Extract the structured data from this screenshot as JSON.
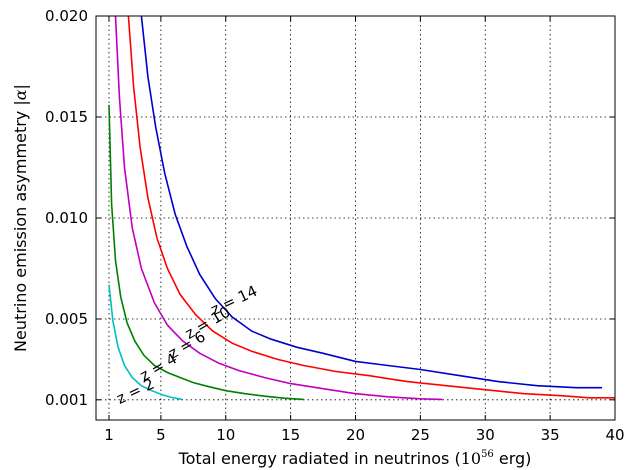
{
  "chart_data": {
    "type": "line",
    "xlabel": "Total energy radiated in neutrinos (",
    "xlabel_math": "10",
    "xlabel_exp": "56",
    "xlabel_tail": " erg)",
    "ylabel": "Neutrino emission asymmetry |",
    "ylabel_math": "α",
    "ylabel_tail": "|",
    "xlim": [
      0,
      40
    ],
    "ylim": [
      0,
      0.02
    ],
    "x_ticks": [
      1,
      5,
      10,
      15,
      20,
      25,
      30,
      35,
      40
    ],
    "x_tick_labels": [
      "1",
      "5",
      "10",
      "15",
      "20",
      "25",
      "30",
      "35",
      "40"
    ],
    "y_ticks": [
      0.001,
      0.005,
      0.01,
      0.015,
      0.02
    ],
    "y_tick_labels": [
      "0.001",
      "0.005",
      "0.010",
      "0.015",
      "0.020"
    ],
    "grid": true,
    "series": [
      {
        "name": "z = 2",
        "color": "#00bfbf",
        "x": [
          1.0,
          1.3,
          1.7,
          2.2,
          2.8,
          3.5,
          4.3,
          5.1,
          5.8,
          6.6
        ],
        "y": [
          0.0067,
          0.0049,
          0.0036,
          0.0027,
          0.0021,
          0.0017,
          0.00145,
          0.00125,
          0.00112,
          0.00103
        ],
        "label_pos": [
          3.2,
          0.0012
        ],
        "label_angle": -25
      },
      {
        "name": "z = 4",
        "color": "#008000",
        "x": [
          1.0,
          1.2,
          1.5,
          1.9,
          2.4,
          3.0,
          3.7,
          4.5,
          5.5,
          6.5,
          7.5,
          8.7,
          10.0,
          11.5,
          13.0,
          14.5,
          16.0
        ],
        "y": [
          0.0156,
          0.0107,
          0.0079,
          0.0061,
          0.0048,
          0.0039,
          0.0032,
          0.0027,
          0.00235,
          0.0021,
          0.00185,
          0.00165,
          0.00145,
          0.0013,
          0.00118,
          0.00108,
          0.00102
        ],
        "label_pos": [
          5.0,
          0.0024
        ],
        "label_angle": -30
      },
      {
        "name": "z = 6",
        "color": "#bf00bf",
        "x": [
          1.5,
          1.8,
          2.2,
          2.8,
          3.5,
          4.5,
          5.5,
          6.7,
          8.0,
          9.5,
          11.0,
          13.0,
          15.0,
          17.5,
          20.0,
          22.5,
          25.0,
          26.7
        ],
        "y": [
          0.02,
          0.016,
          0.0125,
          0.0095,
          0.0075,
          0.0058,
          0.0047,
          0.0039,
          0.0033,
          0.0028,
          0.00245,
          0.0021,
          0.0018,
          0.00155,
          0.0013,
          0.00115,
          0.00105,
          0.00102
        ],
        "label_pos": [
          7.2,
          0.0035
        ],
        "label_angle": -30
      },
      {
        "name": "z = 10",
        "color": "#ff0000",
        "x": [
          2.5,
          2.9,
          3.4,
          4.0,
          4.7,
          5.5,
          6.5,
          7.7,
          9.0,
          10.5,
          12.0,
          14.0,
          16.0,
          18.5,
          21.0,
          24.0,
          27.0,
          30.0,
          33.0,
          36.0,
          38.0,
          40.0
        ],
        "y": [
          0.02,
          0.0165,
          0.0135,
          0.011,
          0.009,
          0.0075,
          0.0062,
          0.0052,
          0.0044,
          0.0038,
          0.0034,
          0.003,
          0.0027,
          0.0024,
          0.0022,
          0.0019,
          0.0017,
          0.0015,
          0.0013,
          0.0012,
          0.0011,
          0.0011
        ],
        "label_pos": [
          8.8,
          0.0046
        ],
        "label_angle": -30
      },
      {
        "name": "z = 14",
        "color": "#0000cc",
        "x": [
          3.5,
          4.0,
          4.6,
          5.3,
          6.1,
          7.0,
          8.0,
          9.2,
          10.5,
          12.0,
          13.5,
          15.5,
          17.5,
          20.0,
          22.5,
          25.0,
          28.0,
          31.0,
          34.0,
          37.0,
          39.0
        ],
        "y": [
          0.02,
          0.017,
          0.0145,
          0.0122,
          0.0102,
          0.0086,
          0.0072,
          0.006,
          0.0051,
          0.0044,
          0.004,
          0.0036,
          0.0033,
          0.0029,
          0.0027,
          0.0025,
          0.0022,
          0.0019,
          0.0017,
          0.0016,
          0.0016
        ],
        "label_pos": [
          10.8,
          0.0057
        ],
        "label_angle": -25
      }
    ]
  }
}
